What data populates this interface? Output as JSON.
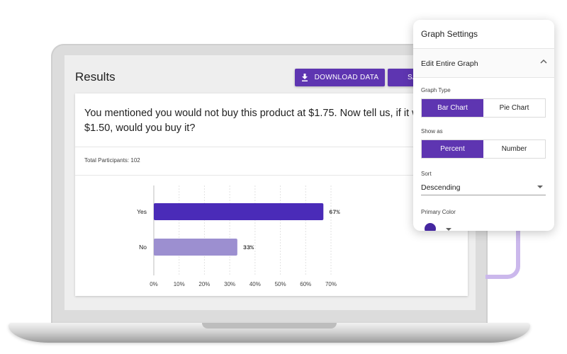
{
  "results": {
    "title": "Results",
    "download_label": "DOWNLOAD DATA",
    "save_label": "SA",
    "question": "You mentioned you would not buy this product at $1.75. Now tell us, if it was at $1.50, would you buy it?",
    "participants": "Total Participants: 102"
  },
  "chart_data": {
    "type": "bar",
    "orientation": "horizontal",
    "categories": [
      "Yes",
      "No"
    ],
    "values": [
      67,
      33
    ],
    "value_labels": [
      "67%",
      "33%"
    ],
    "xlim": [
      0,
      70
    ],
    "xticks": [
      "0%",
      "10%",
      "20%",
      "30%",
      "40%",
      "50%",
      "60%",
      "70%"
    ],
    "grid": true,
    "colors": [
      "#4a2bb8",
      "#9c8fd0"
    ]
  },
  "settings": {
    "title": "Graph Settings",
    "section": "Edit Entire Graph",
    "graph_type_label": "Graph Type",
    "graph_types": [
      "Bar Chart",
      "Pie Chart"
    ],
    "show_as_label": "Show as",
    "show_as": [
      "Percent",
      "Number"
    ],
    "sort_label": "Sort",
    "sort_value": "Descending",
    "primary_color_label": "Primary Color",
    "primary_color": "#4527a0",
    "accent": "#5e35b1"
  }
}
